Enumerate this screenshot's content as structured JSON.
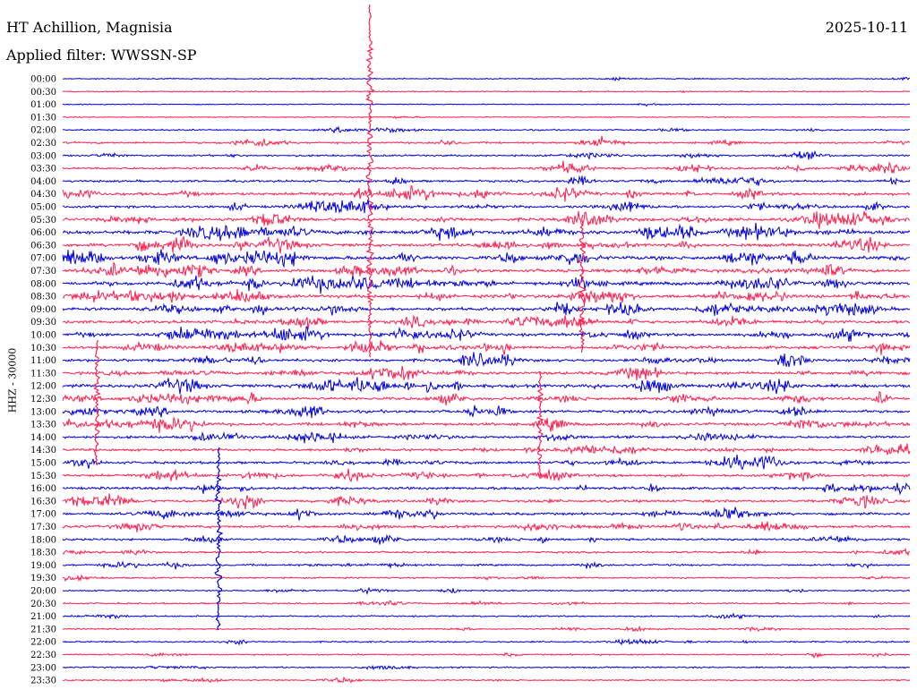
{
  "header": {
    "station": "HT Achillion, Magnisia",
    "filter": "Applied filter: WWSSN-SP",
    "date": "2025-10-11"
  },
  "colors": {
    "trace_a": "#0000e0",
    "trace_b": "#ff1f4f"
  },
  "chart_data": {
    "type": "line",
    "title": "",
    "ylabel": "HHZ - 30000",
    "xlabel": "",
    "grid": false,
    "legend": "none",
    "categories": [
      "00:00",
      "00:30",
      "01:00",
      "01:30",
      "02:00",
      "02:30",
      "03:00",
      "03:30",
      "04:00",
      "04:30",
      "05:00",
      "05:30",
      "06:00",
      "06:30",
      "07:00",
      "07:30",
      "08:00",
      "08:30",
      "09:00",
      "09:30",
      "10:00",
      "10:30",
      "11:00",
      "11:30",
      "12:00",
      "12:30",
      "13:00",
      "13:30",
      "14:00",
      "14:30",
      "15:00",
      "15:30",
      "16:00",
      "16:30",
      "17:00",
      "17:30",
      "18:00",
      "18:30",
      "19:00",
      "19:30",
      "20:00",
      "20:30",
      "21:00",
      "21:30",
      "22:00",
      "22:30",
      "23:00",
      "23:30"
    ],
    "values": [
      1,
      1,
      0.5,
      0.5,
      2,
      3,
      3,
      4,
      4,
      6,
      5,
      7,
      8,
      7,
      8,
      7,
      8,
      7,
      7,
      6,
      6,
      6,
      6,
      6,
      7,
      6,
      6,
      6,
      5,
      5,
      5,
      5,
      5,
      5,
      5,
      5,
      4,
      3,
      3,
      2,
      2,
      2,
      2,
      2,
      2,
      2,
      2,
      2
    ]
  }
}
